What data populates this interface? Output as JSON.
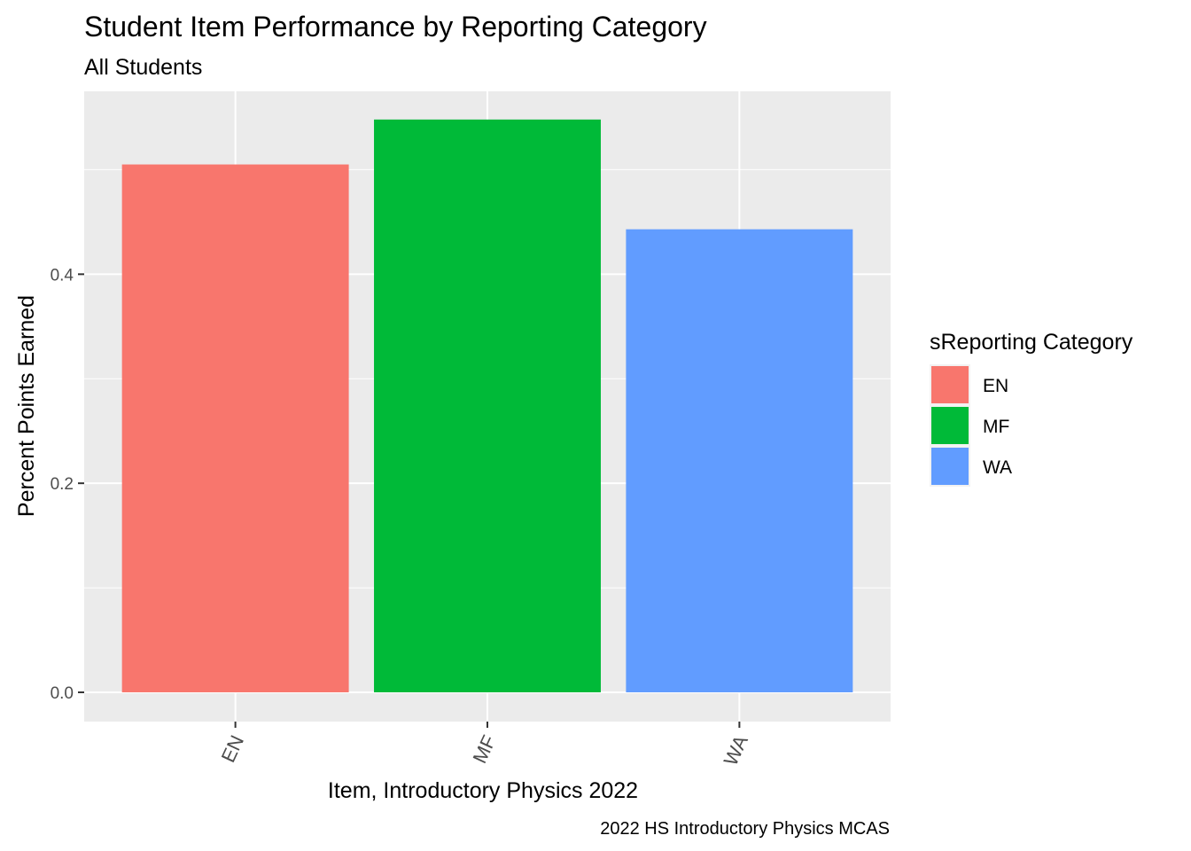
{
  "chart_data": {
    "type": "bar",
    "title": "Student Item Performance by Reporting Category",
    "subtitle": "All Students",
    "xlabel": "Item, Introductory Physics 2022",
    "ylabel": "Percent Points Earned",
    "caption": "2022 HS Introductory Physics MCAS",
    "categories": [
      "EN",
      "MF",
      "WA"
    ],
    "values": [
      0.505,
      0.548,
      0.443
    ],
    "colors": [
      "#F8766D",
      "#00BA38",
      "#619CFF"
    ],
    "ylim": [
      -0.028,
      0.575
    ],
    "yticks": [
      0.0,
      0.2,
      0.4
    ],
    "ytick_labels": [
      "0.0",
      "0.2",
      "0.4"
    ],
    "grid": true,
    "panel_background": "#EBEBEB",
    "legend": {
      "title": "sReporting Category",
      "position": "right",
      "entries": [
        "EN",
        "MF",
        "WA"
      ]
    }
  }
}
